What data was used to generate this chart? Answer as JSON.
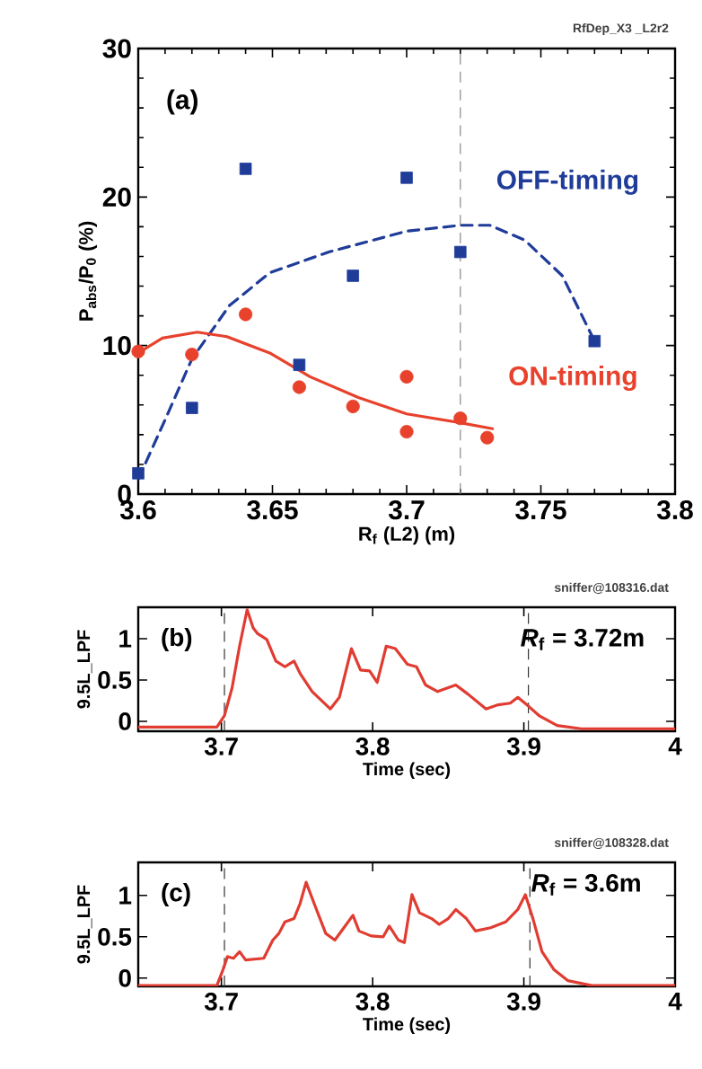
{
  "chart_data": [
    {
      "type": "scatter",
      "title": "RfDep_X3 _L2r2",
      "xlabel": "R$_{f}$ (L2) (m)",
      "ylabel": "P$_{abs}$/P$_{0}$ (%)",
      "annotations": [
        "(a)"
      ],
      "xlim": [
        3.6,
        3.8
      ],
      "ylim": [
        0,
        30
      ],
      "xticks": [
        3.6,
        3.65,
        3.7,
        3.75,
        3.8
      ],
      "yticks": [
        0,
        10,
        20,
        30
      ],
      "ref_lines": [
        {
          "axis": "x",
          "value": 3.72,
          "color": "#888888",
          "line_style": "dashed"
        }
      ],
      "series": [
        {
          "marker": "square",
          "color": "#1f3c99",
          "x": [
            3.6,
            3.62,
            3.64,
            3.66,
            3.68,
            3.7,
            3.72,
            3.77
          ],
          "values": [
            1.4,
            5.8,
            21.9,
            8.7,
            14.7,
            21.3,
            16.3,
            10.3
          ]
        },
        {
          "marker": "circle",
          "color": "#e8412c",
          "x": [
            3.6,
            3.62,
            3.64,
            3.66,
            3.68,
            3.7,
            3.7,
            3.72,
            3.73
          ],
          "values": [
            9.6,
            9.4,
            12.1,
            7.2,
            5.9,
            7.9,
            4.2,
            5.1,
            3.8
          ]
        },
        {
          "type": "line",
          "name": "OFF-timing",
          "line_style": "dashed",
          "color": "#1f3c99",
          "x": [
            3.6,
            3.61,
            3.62,
            3.634,
            3.649,
            3.671,
            3.7,
            3.72,
            3.731,
            3.744,
            3.758,
            3.77
          ],
          "values": [
            1.0,
            5.0,
            9.1,
            12.7,
            14.9,
            16.3,
            17.7,
            18.1,
            18.1,
            17.1,
            14.7,
            10.3
          ]
        },
        {
          "type": "line",
          "name": "ON-timing",
          "line_style": "solid",
          "color": "#e8412c",
          "x": [
            3.6,
            3.609,
            3.622,
            3.633,
            3.649,
            3.664,
            3.682,
            3.7,
            3.72,
            3.732
          ],
          "values": [
            9.5,
            10.5,
            10.9,
            10.6,
            9.5,
            7.9,
            6.5,
            5.4,
            4.8,
            4.4
          ]
        }
      ]
    },
    {
      "type": "line",
      "title": "sniffer@108316.dat",
      "xlabel": "Time (sec)",
      "ylabel": "9.5L_LPF",
      "annotations": [
        "(b)",
        "*R*$_{f}$ = 3.72m"
      ],
      "xlim": [
        3.645,
        4.0
      ],
      "ylim": [
        -0.12,
        1.38
      ],
      "xticks": [
        3.7,
        3.8,
        3.9,
        4
      ],
      "yticks": [
        0,
        0.5,
        1
      ],
      "ref_lines": [
        {
          "axis": "x",
          "value": 3.702,
          "color": "#333333",
          "line_style": "dashed"
        },
        {
          "axis": "x",
          "value": 3.903,
          "color": "#333333",
          "line_style": "dashed"
        }
      ],
      "series": [
        {
          "color": "#e03c31",
          "line_style": "solid",
          "x": [
            3.645,
            3.697,
            3.702,
            3.707,
            3.712,
            3.717,
            3.721,
            3.724,
            3.73,
            3.736,
            3.742,
            3.748,
            3.752,
            3.76,
            3.772,
            3.778,
            3.786,
            3.792,
            3.798,
            3.803,
            3.809,
            3.815,
            3.823,
            3.829,
            3.835,
            3.843,
            3.855,
            3.863,
            3.875,
            3.883,
            3.891,
            3.896,
            3.902,
            3.91,
            3.922,
            3.938,
            4.0
          ],
          "values": [
            -0.07,
            -0.07,
            0.07,
            0.4,
            0.91,
            1.35,
            1.13,
            1.06,
            0.99,
            0.73,
            0.66,
            0.73,
            0.58,
            0.36,
            0.15,
            0.29,
            0.88,
            0.62,
            0.61,
            0.47,
            0.91,
            0.88,
            0.69,
            0.66,
            0.44,
            0.36,
            0.44,
            0.33,
            0.15,
            0.2,
            0.22,
            0.29,
            0.2,
            0.07,
            -0.05,
            -0.09,
            -0.09
          ]
        }
      ]
    },
    {
      "type": "line",
      "title": "sniffer@108328.dat",
      "xlabel": "Time (sec)",
      "ylabel": "9.5L_LPF",
      "annotations": [
        "(c)",
        "*R*$_{f}$ = 3.6m"
      ],
      "xlim": [
        3.645,
        4.0
      ],
      "ylim": [
        -0.1,
        1.4
      ],
      "xticks": [
        3.7,
        3.8,
        3.9,
        4
      ],
      "yticks": [
        0,
        0.5,
        1
      ],
      "ref_lines": [
        {
          "axis": "x",
          "value": 3.702,
          "color": "#333333",
          "line_style": "dashed"
        },
        {
          "axis": "x",
          "value": 3.904,
          "color": "#333333",
          "line_style": "dashed"
        }
      ],
      "series": [
        {
          "color": "#e03c31",
          "line_style": "solid",
          "x": [
            3.645,
            3.697,
            3.701,
            3.704,
            3.708,
            3.712,
            3.716,
            3.728,
            3.734,
            3.738,
            3.742,
            3.748,
            3.752,
            3.756,
            3.762,
            3.769,
            3.775,
            3.781,
            3.787,
            3.791,
            3.799,
            3.807,
            3.811,
            3.817,
            3.821,
            3.826,
            3.831,
            3.839,
            3.844,
            3.85,
            3.855,
            3.862,
            3.868,
            3.878,
            3.888,
            3.896,
            3.901,
            3.906,
            3.912,
            3.92,
            3.929,
            3.945,
            4.0
          ],
          "values": [
            -0.09,
            -0.09,
            0.1,
            0.26,
            0.24,
            0.32,
            0.22,
            0.24,
            0.46,
            0.54,
            0.68,
            0.72,
            0.9,
            1.16,
            0.87,
            0.54,
            0.46,
            0.61,
            0.76,
            0.57,
            0.51,
            0.5,
            0.63,
            0.46,
            0.43,
            1.01,
            0.79,
            0.72,
            0.65,
            0.72,
            0.83,
            0.72,
            0.57,
            0.61,
            0.68,
            0.83,
            1.01,
            0.72,
            0.32,
            0.1,
            -0.03,
            -0.09,
            -0.09
          ]
        }
      ]
    }
  ]
}
